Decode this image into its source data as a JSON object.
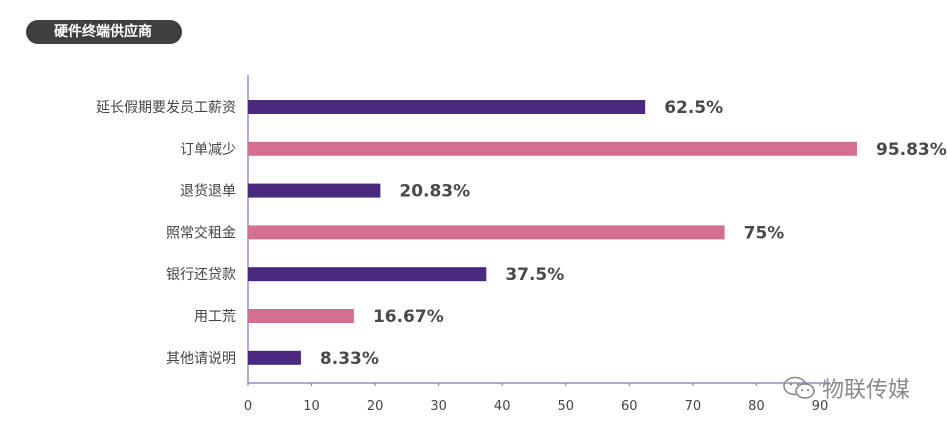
{
  "title": "硬件终端供应商",
  "chart_data": {
    "type": "bar",
    "orientation": "horizontal",
    "title": "硬件终端供应商",
    "categories": [
      "延长假期要发员工薪资",
      "订单减少",
      "退货退单",
      "照常交租金",
      "银行还贷款",
      "用工荒",
      "其他请说明"
    ],
    "values": [
      62.5,
      95.83,
      20.83,
      75,
      37.5,
      16.67,
      8.33
    ],
    "value_labels": [
      "62.5%",
      "95.83%",
      "20.83%",
      "75%",
      "37.5%",
      "16.67%",
      "8.33%"
    ],
    "bar_colors": [
      "#4a2a7e",
      "#d4708f",
      "#4a2a7e",
      "#d4708f",
      "#4a2a7e",
      "#d4708f",
      "#4a2a7e"
    ],
    "xticks": [
      0,
      10,
      20,
      30,
      40,
      50,
      60,
      70,
      80,
      90
    ],
    "xlim": [
      0,
      100
    ],
    "xlabel": "",
    "ylabel": "",
    "grid": false
  },
  "watermark": {
    "text": "物联传媒",
    "icon": "wechat-icon"
  },
  "colors": {
    "title_bg": "#3f3f3f",
    "axis": "#8a6fb3",
    "label_text": "#444444",
    "value_text": "#4a4a4a"
  }
}
